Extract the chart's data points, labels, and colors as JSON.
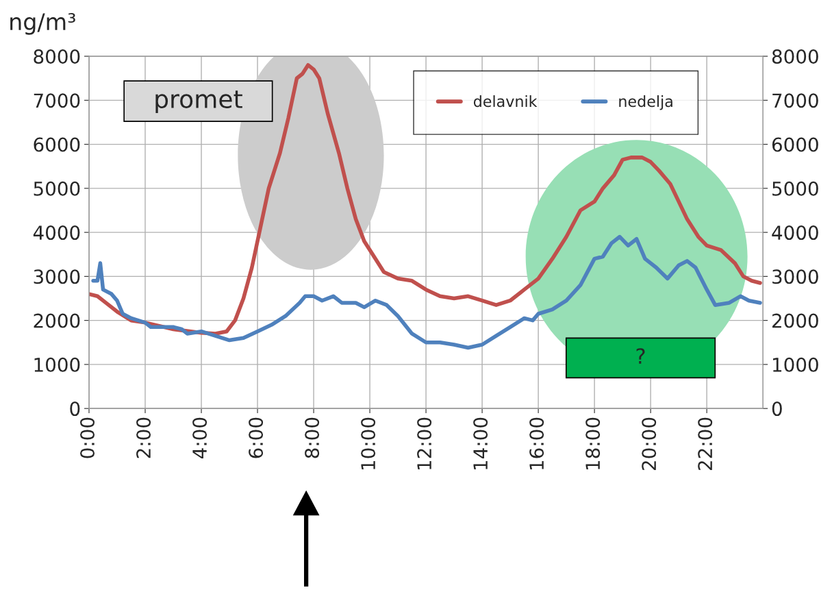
{
  "chart_data": {
    "type": "line",
    "ylabel": "ng/m³",
    "x": [
      0,
      0.3,
      0.6,
      1,
      1.5,
      2,
      3,
      4,
      4.5,
      4.9,
      5.2,
      5.5,
      5.8,
      6.1,
      6.4,
      6.8,
      7.1,
      7.4,
      7.6,
      7.8,
      8.0,
      8.2,
      8.5,
      8.9,
      9.2,
      9.5,
      9.8,
      10.1,
      10.5,
      11,
      11.5,
      12,
      12.5,
      13,
      13.5,
      14,
      14.5,
      15,
      15.5,
      16,
      16.5,
      17,
      17.5,
      18,
      18.3,
      18.7,
      19,
      19.3,
      19.7,
      20,
      20.3,
      20.7,
      21,
      21.3,
      21.7,
      22,
      22.5,
      23,
      23.3,
      23.6,
      23.9
    ],
    "series": [
      {
        "name": "delavnik",
        "color": "#c0504d",
        "values": [
          2600,
          2550,
          2400,
          2200,
          2000,
          1950,
          1800,
          1720,
          1700,
          1750,
          2000,
          2500,
          3200,
          4100,
          5000,
          5800,
          6600,
          7500,
          7600,
          7800,
          7700,
          7500,
          6700,
          5800,
          5000,
          4300,
          3800,
          3500,
          3100,
          2950,
          2900,
          2700,
          2550,
          2500,
          2550,
          2450,
          2350,
          2450,
          2700,
          2950,
          3400,
          3900,
          4500,
          4700,
          5000,
          5300,
          5650,
          5700,
          5700,
          5600,
          5400,
          5100,
          4700,
          4300,
          3900,
          3700,
          3600,
          3300,
          3000,
          2900,
          2850
        ]
      },
      {
        "name": "nedelja",
        "color": "#4f81bd",
        "x": [
          0.15,
          0.3,
          0.4,
          0.5,
          0.8,
          1,
          1.2,
          1.5,
          2,
          2.2,
          3,
          3.3,
          3.5,
          4,
          4.5,
          5,
          5.5,
          6,
          6.5,
          7,
          7.5,
          7.7,
          8,
          8.3,
          8.7,
          9,
          9.5,
          9.8,
          10.2,
          10.6,
          11,
          11.5,
          12,
          12.5,
          13,
          13.5,
          14,
          14.5,
          15,
          15.5,
          15.8,
          16,
          16.5,
          17,
          17.5,
          18,
          18.3,
          18.6,
          18.9,
          19.2,
          19.5,
          19.8,
          20.2,
          20.6,
          21,
          21.3,
          21.6,
          22,
          22.3,
          22.8,
          23.2,
          23.5,
          23.9
        ],
        "values": [
          2900,
          2900,
          3300,
          2700,
          2600,
          2450,
          2150,
          2050,
          1950,
          1850,
          1850,
          1800,
          1700,
          1750,
          1650,
          1550,
          1600,
          1750,
          1900,
          2100,
          2400,
          2550,
          2550,
          2450,
          2550,
          2400,
          2400,
          2300,
          2450,
          2350,
          2100,
          1700,
          1500,
          1500,
          1450,
          1380,
          1450,
          1650,
          1850,
          2050,
          2000,
          2150,
          2250,
          2450,
          2800,
          3400,
          3450,
          3750,
          3900,
          3700,
          3850,
          3400,
          3200,
          2950,
          3250,
          3350,
          3200,
          2700,
          2350,
          2400,
          2550,
          2450,
          2400
        ]
      }
    ],
    "xlim": [
      0,
      24
    ],
    "xticks": [
      {
        "value": 0,
        "label": "0:00"
      },
      {
        "value": 2,
        "label": "2:00"
      },
      {
        "value": 4,
        "label": "4:00"
      },
      {
        "value": 6,
        "label": "6:00"
      },
      {
        "value": 8,
        "label": "8:00"
      },
      {
        "value": 10,
        "label": "10:00"
      },
      {
        "value": 12,
        "label": "12:00"
      },
      {
        "value": 14,
        "label": "14:00"
      },
      {
        "value": 16,
        "label": "16:00"
      },
      {
        "value": 18,
        "label": "18:00"
      },
      {
        "value": 20,
        "label": "20:00"
      },
      {
        "value": 22,
        "label": "22:00"
      }
    ],
    "ylim": [
      0,
      8000
    ],
    "yticks": [
      0,
      1000,
      2000,
      3000,
      4000,
      5000,
      6000,
      7000,
      8000
    ],
    "y2lim": [
      0,
      8000
    ],
    "y2ticks": [
      0,
      1000,
      2000,
      3000,
      4000,
      5000,
      6000,
      7000,
      8000
    ],
    "grid": true,
    "legend": "top right",
    "line_style": "solid",
    "marker": "none",
    "annotations": [
      "promet",
      "?"
    ]
  }
}
